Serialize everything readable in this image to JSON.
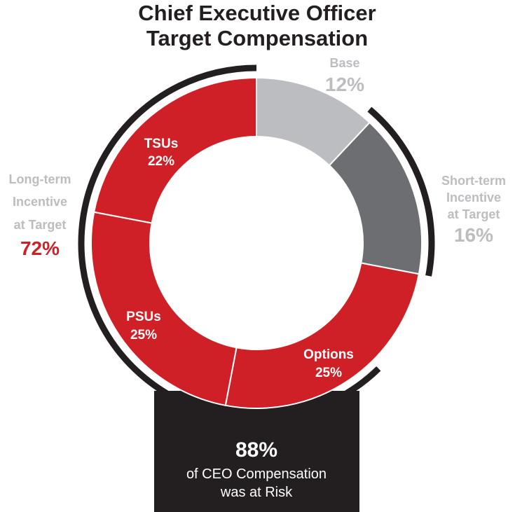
{
  "chart_data": {
    "type": "pie",
    "title": [
      "Chief Executive Officer",
      "Target Compensation"
    ],
    "slices": [
      {
        "name": "Base",
        "value": 12,
        "label": "12%",
        "color": "#bcbdc0"
      },
      {
        "name": "Short-term Incentive at Target",
        "value": 16,
        "label": "16%",
        "color": "#6d6e71"
      },
      {
        "name": "Options",
        "value": 25,
        "label": "25%",
        "color": "#cf2027"
      },
      {
        "name": "PSUs",
        "value": 25,
        "label": "25%",
        "color": "#cf2027"
      },
      {
        "name": "TSUs",
        "value": 22,
        "label": "22%",
        "color": "#cf2027"
      }
    ],
    "slice_labels": {
      "tsus": {
        "name": "TSUs",
        "value": "22%"
      },
      "psus": {
        "name": "PSUs",
        "value": "25%"
      },
      "options": {
        "name": "Options",
        "value": "25%"
      }
    },
    "groups": {
      "base": {
        "label": "Base",
        "value": "12%",
        "color": "#bcbdc0"
      },
      "short_term": {
        "lines": [
          "Short-term",
          "Incentive",
          "at Target"
        ],
        "value": "16%",
        "color": "#bcbdc0"
      },
      "long_term": {
        "lines": [
          "Long-term",
          "Incentive",
          "at Target"
        ],
        "value": "72%",
        "label_color": "#bcbdc0",
        "value_color": "#cf2027"
      }
    },
    "risk_box": {
      "value": "88%",
      "lines": [
        "of CEO Compensation",
        "was at Risk"
      ],
      "color": "#231f20"
    }
  }
}
